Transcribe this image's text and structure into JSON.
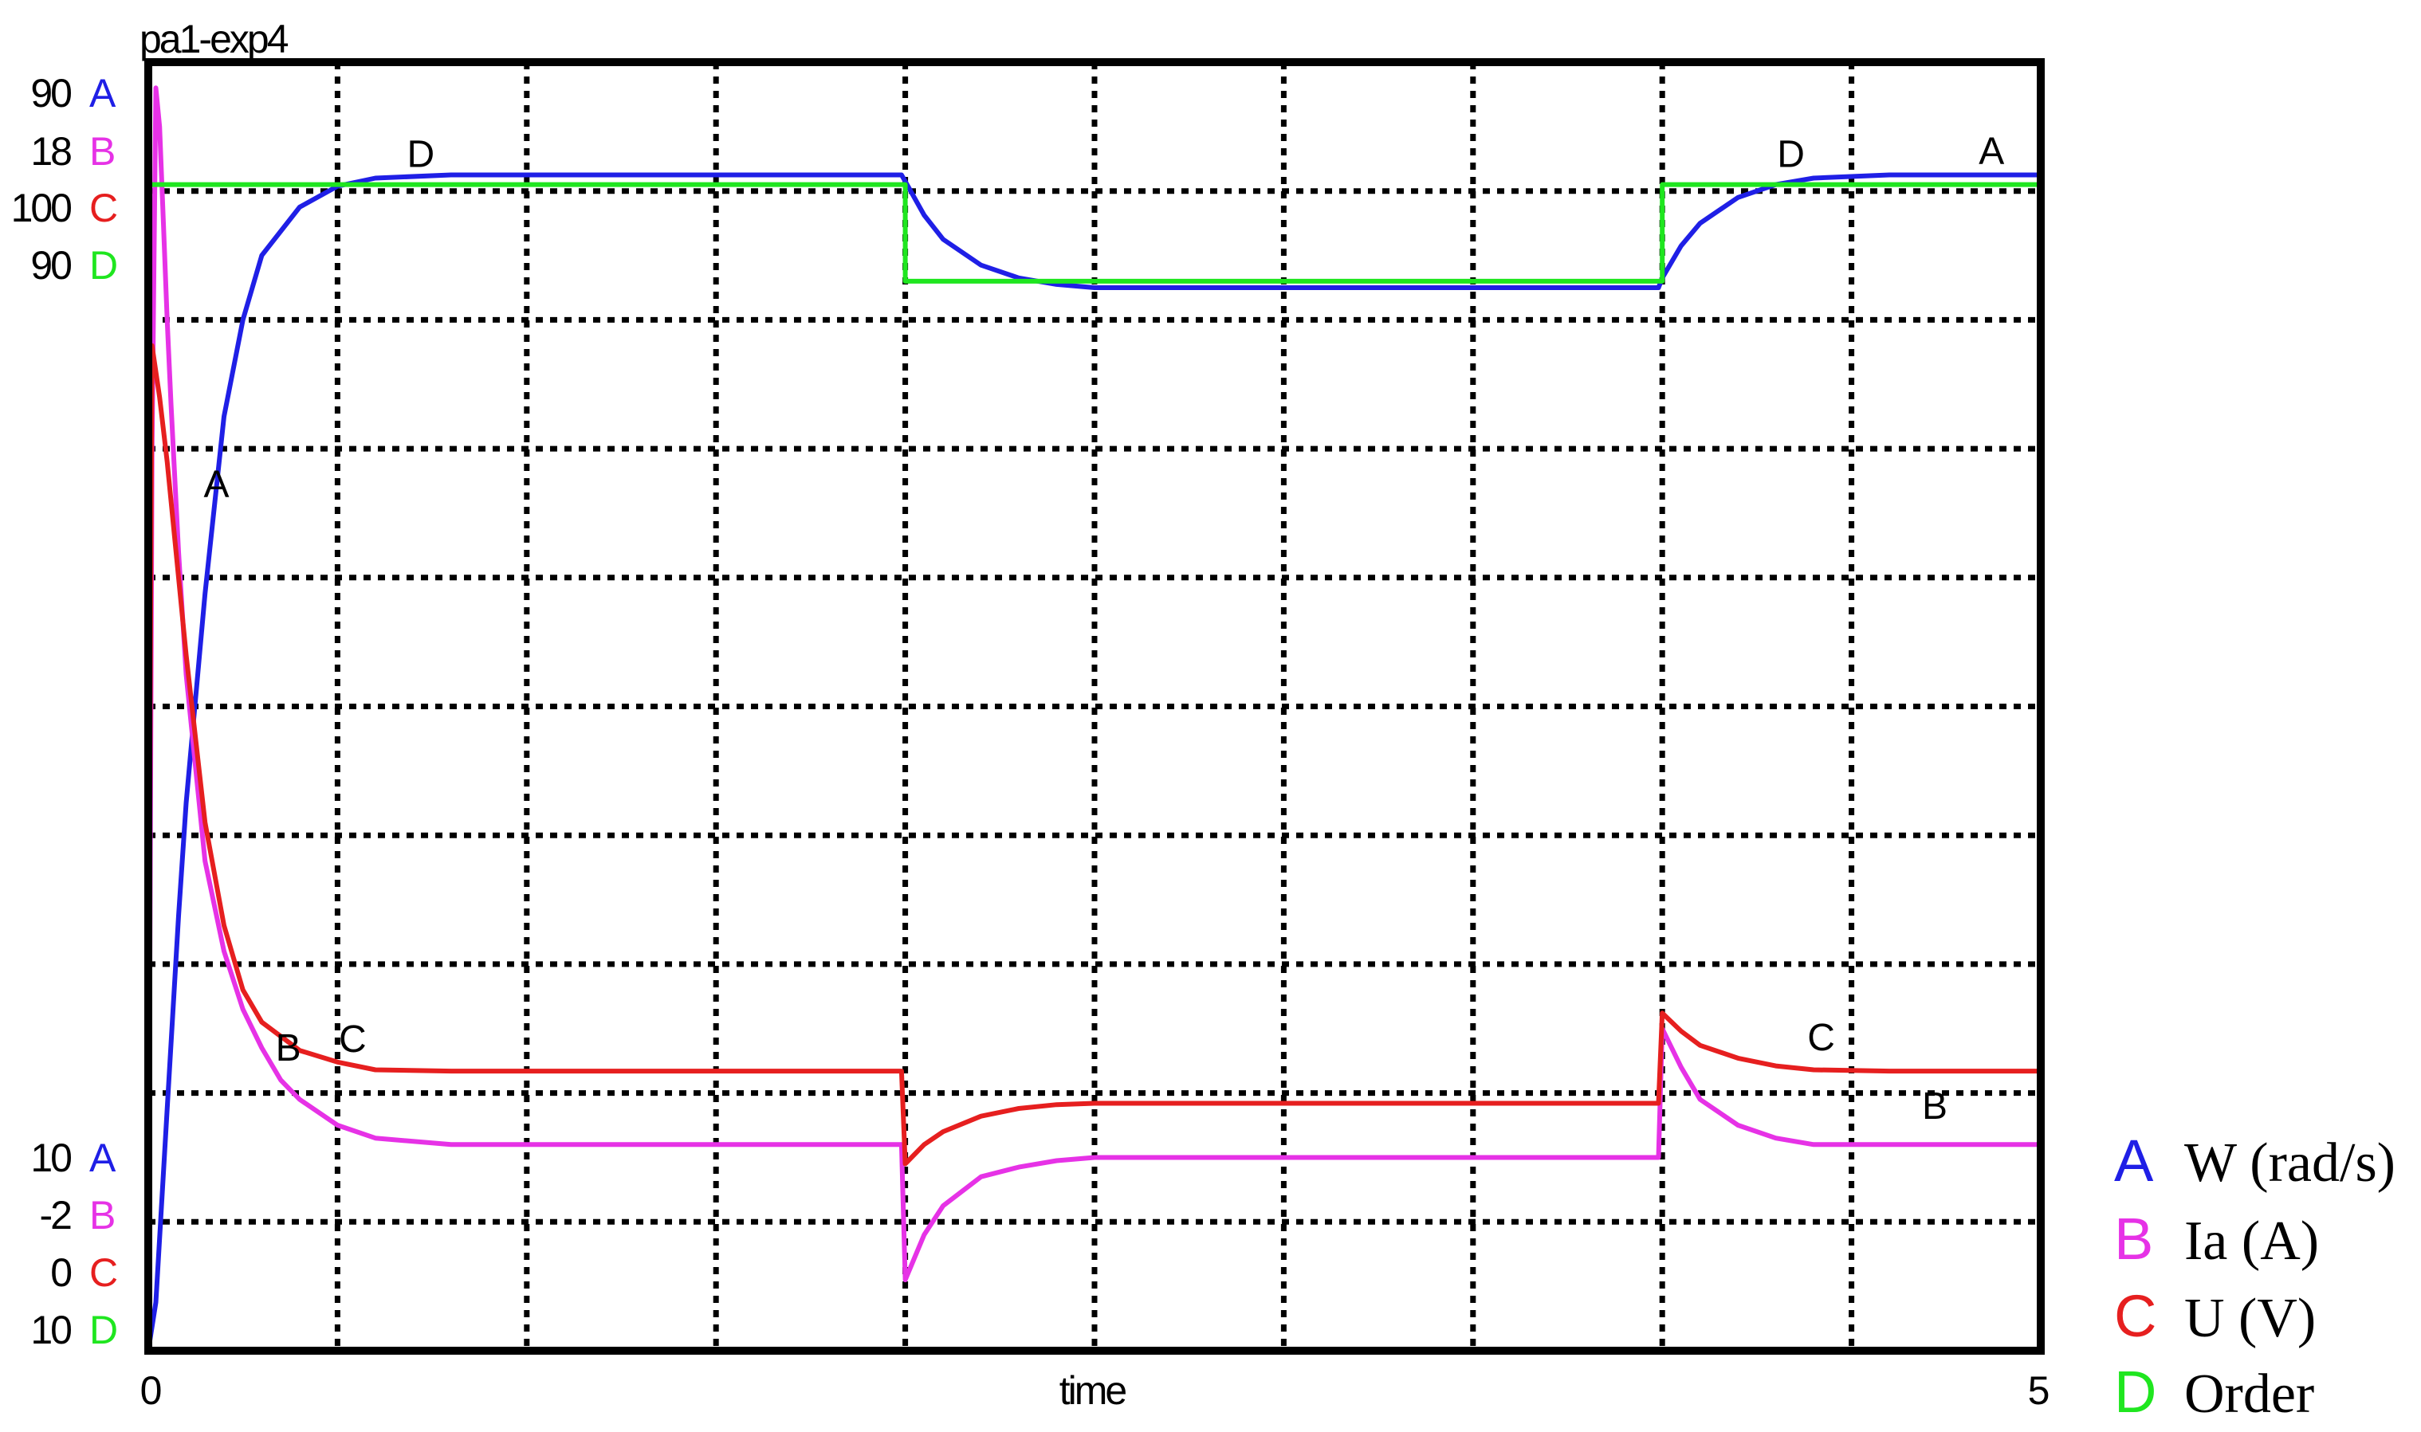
{
  "chart_data": {
    "type": "line",
    "title": "pa1-exp4",
    "xlabel": "time",
    "x_tick_labels": [
      "0",
      "5"
    ],
    "xlim": [
      0,
      5
    ],
    "grid": true,
    "legend_position": "right",
    "series": [
      {
        "id": "A",
        "name": "W (rad/s)",
        "color": "#1f1fe6",
        "axis": {
          "max_label": "90",
          "min_label": "10",
          "ylim": [
            10,
            90
          ]
        },
        "x": [
          0,
          0.02,
          0.05,
          0.08,
          0.1,
          0.15,
          0.2,
          0.25,
          0.3,
          0.4,
          0.5,
          0.6,
          0.8,
          1.0,
          1.5,
          1.99,
          2.0,
          2.05,
          2.1,
          2.2,
          2.3,
          2.4,
          2.5,
          3.0,
          3.5,
          3.99,
          4.0,
          4.05,
          4.1,
          4.2,
          4.3,
          4.4,
          4.6,
          4.8,
          5.0
        ],
        "y": [
          10,
          13,
          25,
          37,
          44,
          57,
          68,
          74,
          78,
          81,
          82.3,
          82.8,
          83,
          83,
          83,
          83,
          82.6,
          80.5,
          79,
          77.4,
          76.6,
          76.2,
          76,
          76,
          76,
          76,
          76.6,
          78.6,
          80,
          81.6,
          82.4,
          82.8,
          83,
          83,
          83
        ]
      },
      {
        "id": "B",
        "name": "Ia (A)",
        "color": "#e632e6",
        "axis": {
          "max_label": "18",
          "min_label": "-2",
          "ylim": [
            -2,
            18
          ]
        },
        "x": [
          0,
          0.01,
          0.02,
          0.03,
          0.04,
          0.05,
          0.06,
          0.08,
          0.1,
          0.15,
          0.2,
          0.25,
          0.3,
          0.35,
          0.4,
          0.5,
          0.6,
          0.8,
          1.0,
          1.5,
          1.99,
          2.0,
          2.05,
          2.1,
          2.2,
          2.3,
          2.4,
          2.5,
          3.0,
          3.5,
          3.99,
          4.0,
          4.05,
          4.1,
          4.2,
          4.3,
          4.4,
          4.6,
          4.8,
          5.0
        ],
        "y": [
          -2,
          12,
          17.6,
          17,
          15.5,
          14,
          12.7,
          10.4,
          8.5,
          5.6,
          4.2,
          3.3,
          2.7,
          2.2,
          1.9,
          1.5,
          1.3,
          1.2,
          1.2,
          1.2,
          1.2,
          -0.9,
          -0.2,
          0.25,
          0.7,
          0.85,
          0.95,
          1.0,
          1.0,
          1.0,
          1.0,
          3.0,
          2.4,
          1.9,
          1.5,
          1.3,
          1.2,
          1.2,
          1.2,
          1.2
        ]
      },
      {
        "id": "C",
        "name": "U (V)",
        "color": "#e61f1f",
        "axis": {
          "max_label": "100",
          "min_label": "0",
          "ylim": [
            0,
            100
          ]
        },
        "x": [
          0,
          0.005,
          0.01,
          0.03,
          0.05,
          0.08,
          0.1,
          0.15,
          0.2,
          0.25,
          0.3,
          0.4,
          0.5,
          0.6,
          0.8,
          1.0,
          1.5,
          1.99,
          2.0,
          2.05,
          2.1,
          2.2,
          2.3,
          2.4,
          2.5,
          3.0,
          3.5,
          3.99,
          4.0,
          4.05,
          4.1,
          4.2,
          4.3,
          4.4,
          4.6,
          4.8,
          5.0
        ],
        "y": [
          0,
          50,
          78,
          74,
          69,
          60,
          54,
          41,
          33,
          28,
          25.5,
          23.3,
          22.4,
          21.8,
          21.7,
          21.7,
          21.7,
          21.7,
          14.5,
          16,
          17,
          18.2,
          18.8,
          19.1,
          19.2,
          19.2,
          19.2,
          19.2,
          26.2,
          24.8,
          23.7,
          22.7,
          22.1,
          21.8,
          21.7,
          21.7,
          21.7
        ]
      },
      {
        "id": "D",
        "name": "Order",
        "color": "#1fe61f",
        "axis": {
          "max_label": "90",
          "min_label": "10",
          "ylim": [
            10,
            90
          ]
        },
        "x": [
          0,
          2.0,
          2.0,
          4.0,
          4.0,
          5.0
        ],
        "y": [
          82.4,
          82.4,
          76.4,
          76.4,
          82.4,
          82.4
        ]
      }
    ],
    "curve_labels": [
      {
        "text": "D",
        "x": 0.72,
        "y": 83.5,
        "series": "D"
      },
      {
        "text": "A",
        "x": 0.18,
        "y": 63,
        "series": "A"
      },
      {
        "text": "C",
        "x": 0.54,
        "y": 23.2,
        "series": "C"
      },
      {
        "text": "B",
        "x": 0.37,
        "y": 2.5,
        "series": "B"
      },
      {
        "text": "D",
        "x": 4.34,
        "y": 83.5,
        "series": "D"
      },
      {
        "text": "A",
        "x": 4.87,
        "y": 83.7,
        "series": "A"
      },
      {
        "text": "C",
        "x": 4.42,
        "y": 23.3,
        "series": "C"
      },
      {
        "text": "B",
        "x": 4.72,
        "y": 1.6,
        "series": "B"
      }
    ]
  }
}
